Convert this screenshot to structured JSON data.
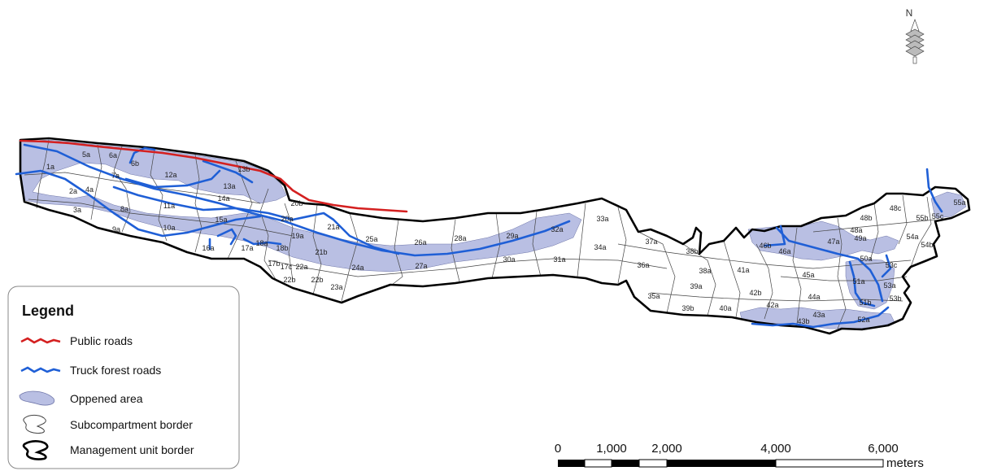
{
  "map": {
    "legend": {
      "title": "Legend",
      "items": [
        {
          "label": "Public roads",
          "color": "#d42020",
          "symbol": "line"
        },
        {
          "label": "Truck forest roads",
          "color": "#1f5fd6",
          "symbol": "line"
        },
        {
          "label": "Oppened area",
          "color": "#b9bfe3",
          "symbol": "area"
        },
        {
          "label": "Subcompartment border",
          "color": "#444444",
          "symbol": "thin-border"
        },
        {
          "label": "Management unit border",
          "color": "#000000",
          "symbol": "thick-border"
        }
      ]
    },
    "scale_bar": {
      "ticks": [
        "0",
        "1,000",
        "2,000",
        "4,000",
        "6,000"
      ],
      "unit": "meters"
    },
    "north_arrow": {
      "label": "N",
      "icon": "north-arrow-icon"
    },
    "subcompartment_labels": [
      "1a",
      "2a",
      "3a",
      "4a",
      "5a",
      "6a",
      "6b",
      "7a",
      "8a",
      "9a",
      "10a",
      "11a",
      "12a",
      "13a",
      "13b",
      "14a",
      "15a",
      "16a",
      "17a",
      "17b",
      "17c",
      "18a",
      "18b",
      "19a",
      "20a",
      "20b",
      "21a",
      "21b",
      "22a",
      "22b",
      "22b",
      "23a",
      "24a",
      "25a",
      "26a",
      "27a",
      "28a",
      "29a",
      "30a",
      "31a",
      "32a",
      "33a",
      "34a",
      "35a",
      "36a",
      "37a",
      "38a",
      "38b",
      "39a",
      "39b",
      "40a",
      "41a",
      "42a",
      "42b",
      "43a",
      "43b",
      "44a",
      "45a",
      "46a",
      "46b",
      "47a",
      "48a",
      "48b",
      "48c",
      "49a",
      "50a",
      "51a",
      "51b",
      "52a",
      "53a",
      "53b",
      "53c",
      "54a",
      "54b",
      "55a",
      "55b",
      "55c"
    ],
    "colors": {
      "public_road": "#d42020",
      "truck_road": "#1f5fd6",
      "opened_area": "#b9bfe3",
      "border": "#000000",
      "subborder": "#444444"
    }
  }
}
